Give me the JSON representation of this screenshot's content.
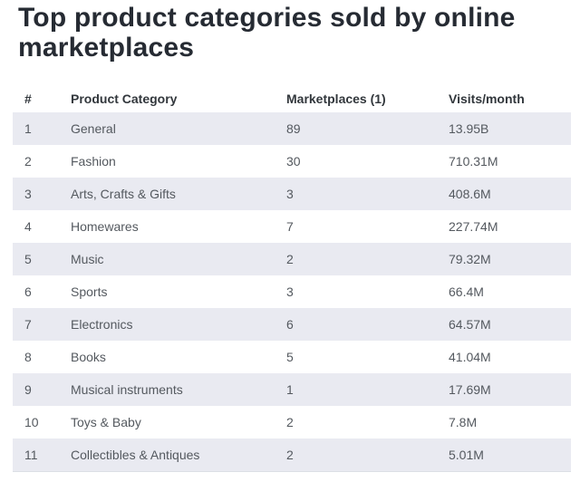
{
  "page": {
    "title": "Top product categories sold by online marketplaces"
  },
  "table": {
    "headers": {
      "rank": "#",
      "category": "Product Category",
      "marketplaces": "Marketplaces (1)",
      "visits": "Visits/month"
    },
    "rows": [
      {
        "rank": "1",
        "category": "General",
        "marketplaces": "89",
        "visits": "13.95B"
      },
      {
        "rank": "2",
        "category": "Fashion",
        "marketplaces": "30",
        "visits": "710.31M"
      },
      {
        "rank": "3",
        "category": "Arts, Crafts & Gifts",
        "marketplaces": "3",
        "visits": "408.6M"
      },
      {
        "rank": "4",
        "category": "Homewares",
        "marketplaces": "7",
        "visits": "227.74M"
      },
      {
        "rank": "5",
        "category": "Music",
        "marketplaces": "2",
        "visits": "79.32M"
      },
      {
        "rank": "6",
        "category": "Sports",
        "marketplaces": "3",
        "visits": "66.4M"
      },
      {
        "rank": "7",
        "category": "Electronics",
        "marketplaces": "6",
        "visits": "64.57M"
      },
      {
        "rank": "8",
        "category": "Books",
        "marketplaces": "5",
        "visits": "41.04M"
      },
      {
        "rank": "9",
        "category": "Musical instruments",
        "marketplaces": "1",
        "visits": "17.69M"
      },
      {
        "rank": "10",
        "category": "Toys & Baby",
        "marketplaces": "2",
        "visits": "7.8M"
      },
      {
        "rank": "11",
        "category": "Collectibles & Antiques",
        "marketplaces": "2",
        "visits": "5.01M"
      }
    ]
  },
  "colors": {
    "title_text": "#262b33",
    "header_text": "#32373c",
    "body_text": "#54595f",
    "row_alt_bg": "#e9eaf1",
    "table_bottom_border": "#dcdfe5"
  },
  "chart_data": {
    "type": "table",
    "title": "Top product categories sold by online marketplaces",
    "columns": [
      "#",
      "Product Category",
      "Marketplaces (1)",
      "Visits/month"
    ],
    "rows": [
      [
        "1",
        "General",
        "89",
        "13.95B"
      ],
      [
        "2",
        "Fashion",
        "30",
        "710.31M"
      ],
      [
        "3",
        "Arts, Crafts & Gifts",
        "3",
        "408.6M"
      ],
      [
        "4",
        "Homewares",
        "7",
        "227.74M"
      ],
      [
        "5",
        "Music",
        "2",
        "79.32M"
      ],
      [
        "6",
        "Sports",
        "3",
        "66.4M"
      ],
      [
        "7",
        "Electronics",
        "6",
        "64.57M"
      ],
      [
        "8",
        "Books",
        "5",
        "41.04M"
      ],
      [
        "9",
        "Musical instruments",
        "1",
        "17.69M"
      ],
      [
        "10",
        "Toys & Baby",
        "2",
        "7.8M"
      ],
      [
        "11",
        "Collectibles & Antiques",
        "2",
        "5.01M"
      ]
    ]
  }
}
